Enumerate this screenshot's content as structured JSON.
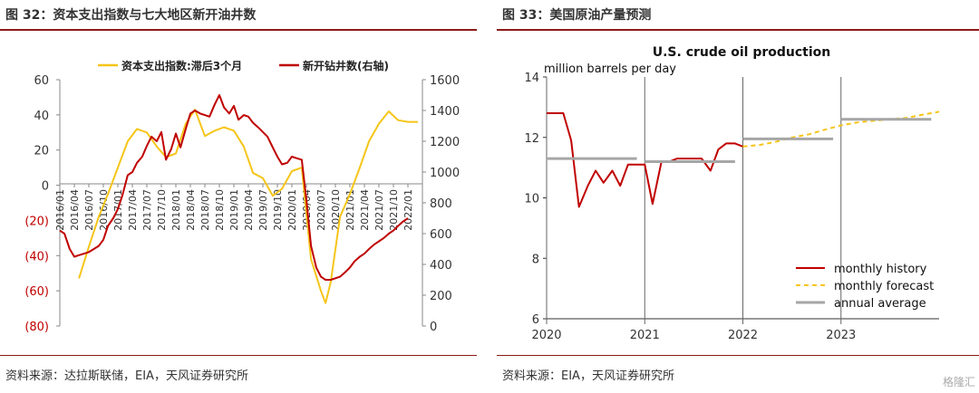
{
  "chart_data": [
    {
      "type": "line",
      "figure_title": "图 32：资本支出指数与七大地区新开油井数",
      "source": "资料来源：达拉斯联储，EIA，天风证券研究所",
      "x_ticks": [
        "2016/01",
        "2016/04",
        "2016/07",
        "2016/10",
        "2017/01",
        "2017/04",
        "2017/07",
        "2017/10",
        "2018/01",
        "2018/04",
        "2018/07",
        "2018/10",
        "2019/01",
        "2019/04",
        "2019/07",
        "2019/10",
        "2020/01",
        "2020/04",
        "2020/07",
        "2020/10",
        "2021/01",
        "2021/04",
        "2021/07",
        "2021/10",
        "2022/01"
      ],
      "y_left": {
        "min": -80,
        "max": 60,
        "step": 20,
        "tick_labels": [
          "(80)",
          "(60)",
          "(40)",
          "(20)",
          "0",
          "20",
          "40",
          "60"
        ]
      },
      "y_right": {
        "min": 0,
        "max": 1600,
        "step": 200,
        "tick_labels": [
          "0",
          "200",
          "400",
          "600",
          "800",
          "1000",
          "1200",
          "1400",
          "1600"
        ]
      },
      "series": [
        {
          "name": "资本支出指数:滞后3个月",
          "axis": "left",
          "color": "#f5c518",
          "points": [
            [
              2016.33,
              -53
            ],
            [
              2016.5,
              -35
            ],
            [
              2016.67,
              -18
            ],
            [
              2016.83,
              -5
            ],
            [
              2017.0,
              10
            ],
            [
              2017.17,
              25
            ],
            [
              2017.33,
              32
            ],
            [
              2017.5,
              30
            ],
            [
              2017.67,
              22
            ],
            [
              2017.83,
              16
            ],
            [
              2018.0,
              18
            ],
            [
              2018.17,
              35
            ],
            [
              2018.33,
              43
            ],
            [
              2018.5,
              28
            ],
            [
              2018.67,
              31
            ],
            [
              2018.83,
              33
            ],
            [
              2019.0,
              31
            ],
            [
              2019.17,
              22
            ],
            [
              2019.33,
              7
            ],
            [
              2019.5,
              4
            ],
            [
              2019.67,
              -6
            ],
            [
              2019.83,
              -2
            ],
            [
              2020.0,
              8
            ],
            [
              2020.17,
              10
            ],
            [
              2020.33,
              -42
            ],
            [
              2020.5,
              -60
            ],
            [
              2020.58,
              -67
            ],
            [
              2020.67,
              -55
            ],
            [
              2020.83,
              -18
            ],
            [
              2021.0,
              -5
            ],
            [
              2021.17,
              10
            ],
            [
              2021.33,
              25
            ],
            [
              2021.5,
              35
            ],
            [
              2021.67,
              42
            ],
            [
              2021.83,
              37
            ],
            [
              2022.0,
              36
            ],
            [
              2022.17,
              36
            ]
          ]
        },
        {
          "name": "新开钻井数(右轴)",
          "axis": "right",
          "color": "#c00000",
          "points": [
            [
              2016.0,
              620
            ],
            [
              2016.08,
              600
            ],
            [
              2016.17,
              500
            ],
            [
              2016.25,
              450
            ],
            [
              2016.33,
              460
            ],
            [
              2016.5,
              480
            ],
            [
              2016.67,
              520
            ],
            [
              2016.75,
              560
            ],
            [
              2016.83,
              650
            ],
            [
              2016.92,
              700
            ],
            [
              2017.0,
              760
            ],
            [
              2017.08,
              850
            ],
            [
              2017.17,
              980
            ],
            [
              2017.25,
              1000
            ],
            [
              2017.33,
              1060
            ],
            [
              2017.42,
              1100
            ],
            [
              2017.5,
              1170
            ],
            [
              2017.58,
              1230
            ],
            [
              2017.67,
              1200
            ],
            [
              2017.75,
              1260
            ],
            [
              2017.83,
              1080
            ],
            [
              2017.92,
              1150
            ],
            [
              2018.0,
              1250
            ],
            [
              2018.08,
              1160
            ],
            [
              2018.17,
              1280
            ],
            [
              2018.25,
              1380
            ],
            [
              2018.33,
              1400
            ],
            [
              2018.42,
              1380
            ],
            [
              2018.5,
              1370
            ],
            [
              2018.58,
              1360
            ],
            [
              2018.67,
              1440
            ],
            [
              2018.75,
              1500
            ],
            [
              2018.83,
              1420
            ],
            [
              2018.92,
              1380
            ],
            [
              2019.0,
              1430
            ],
            [
              2019.08,
              1340
            ],
            [
              2019.17,
              1370
            ],
            [
              2019.25,
              1360
            ],
            [
              2019.33,
              1320
            ],
            [
              2019.42,
              1290
            ],
            [
              2019.5,
              1260
            ],
            [
              2019.58,
              1230
            ],
            [
              2019.67,
              1160
            ],
            [
              2019.75,
              1100
            ],
            [
              2019.83,
              1050
            ],
            [
              2019.92,
              1060
            ],
            [
              2020.0,
              1100
            ],
            [
              2020.08,
              1090
            ],
            [
              2020.17,
              1080
            ],
            [
              2020.25,
              820
            ],
            [
              2020.33,
              520
            ],
            [
              2020.42,
              380
            ],
            [
              2020.5,
              320
            ],
            [
              2020.58,
              300
            ],
            [
              2020.67,
              300
            ],
            [
              2020.75,
              310
            ],
            [
              2020.83,
              320
            ],
            [
              2020.92,
              350
            ],
            [
              2021.0,
              380
            ],
            [
              2021.08,
              420
            ],
            [
              2021.17,
              450
            ],
            [
              2021.25,
              470
            ],
            [
              2021.33,
              500
            ],
            [
              2021.42,
              530
            ],
            [
              2021.5,
              550
            ],
            [
              2021.58,
              570
            ],
            [
              2021.67,
              600
            ],
            [
              2021.75,
              620
            ],
            [
              2021.83,
              650
            ],
            [
              2021.92,
              680
            ],
            [
              2022.0,
              700
            ]
          ]
        }
      ],
      "legend_placement": "top",
      "grid": false
    },
    {
      "type": "line",
      "figure_title": "图 33：美国原油产量预测",
      "source": "资料来源：EIA，天风证券研究所",
      "title": "U.S. crude oil production",
      "ylabel": "million barrels per day",
      "ylim": [
        6,
        14
      ],
      "y_ticks": [
        "6",
        "8",
        "10",
        "12",
        "14"
      ],
      "x_ticks": [
        "2020",
        "2021",
        "2022",
        "2023"
      ],
      "xlim": [
        2020.0,
        2024.0
      ],
      "series": [
        {
          "name": "monthly history",
          "color": "#c00000",
          "style": "solid",
          "points": [
            [
              2020.0,
              12.8
            ],
            [
              2020.08,
              12.8
            ],
            [
              2020.17,
              12.8
            ],
            [
              2020.25,
              11.9
            ],
            [
              2020.33,
              9.7
            ],
            [
              2020.42,
              10.4
            ],
            [
              2020.5,
              10.9
            ],
            [
              2020.58,
              10.5
            ],
            [
              2020.67,
              10.9
            ],
            [
              2020.75,
              10.4
            ],
            [
              2020.83,
              11.1
            ],
            [
              2020.92,
              11.1
            ],
            [
              2021.0,
              11.1
            ],
            [
              2021.08,
              9.8
            ],
            [
              2021.17,
              11.2
            ],
            [
              2021.25,
              11.2
            ],
            [
              2021.33,
              11.3
            ],
            [
              2021.42,
              11.3
            ],
            [
              2021.5,
              11.3
            ],
            [
              2021.58,
              11.3
            ],
            [
              2021.67,
              10.9
            ],
            [
              2021.75,
              11.6
            ],
            [
              2021.83,
              11.8
            ],
            [
              2021.92,
              11.8
            ],
            [
              2022.0,
              11.7
            ]
          ]
        },
        {
          "name": "monthly forecast",
          "color": "#f5c518",
          "style": "dashed",
          "points": [
            [
              2022.0,
              11.7
            ],
            [
              2022.17,
              11.75
            ],
            [
              2022.33,
              11.85
            ],
            [
              2022.5,
              12.0
            ],
            [
              2022.67,
              12.1
            ],
            [
              2022.83,
              12.25
            ],
            [
              2023.0,
              12.4
            ],
            [
              2023.17,
              12.5
            ],
            [
              2023.33,
              12.55
            ],
            [
              2023.5,
              12.6
            ],
            [
              2023.67,
              12.65
            ],
            [
              2023.83,
              12.75
            ],
            [
              2024.0,
              12.85
            ]
          ]
        },
        {
          "name": "annual average",
          "color": "#a6a6a6",
          "style": "segments",
          "segments": [
            [
              2020.0,
              2020.92,
              11.3
            ],
            [
              2021.0,
              2021.92,
              11.2
            ],
            [
              2022.0,
              2022.92,
              11.95
            ],
            [
              2023.0,
              2023.92,
              12.6
            ]
          ]
        }
      ],
      "legend_placement": "bottom-right",
      "grid": false
    }
  ],
  "watermark": "格隆汇"
}
